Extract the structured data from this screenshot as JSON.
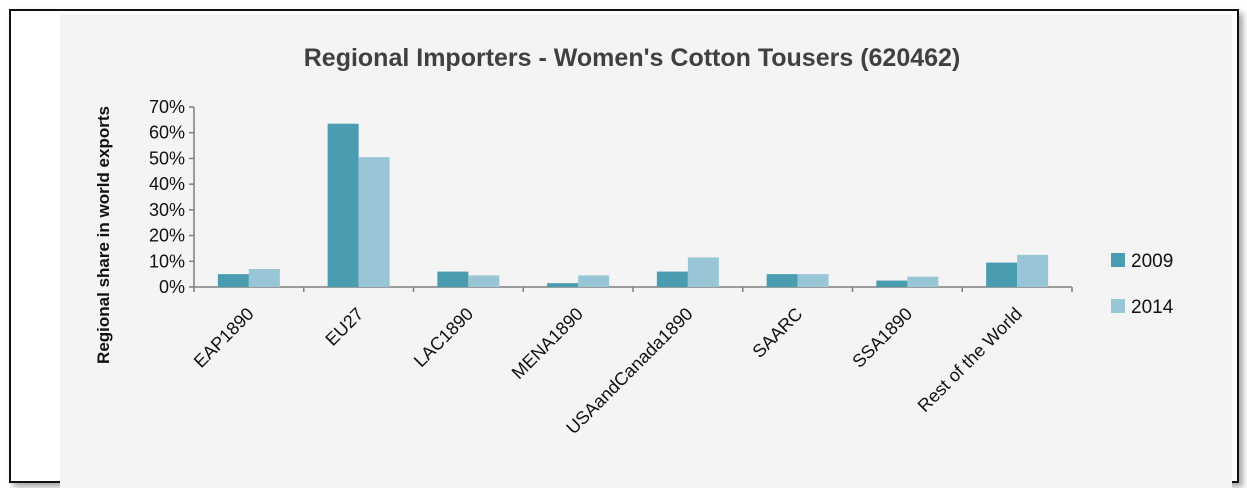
{
  "chart_data": {
    "type": "bar",
    "title": "Regional Importers - Women's Cotton Tousers (620462)",
    "xlabel": "",
    "ylabel": "Regional share in world exports",
    "ylim": [
      0,
      70
    ],
    "yticks": [
      "0%",
      "10%",
      "20%",
      "30%",
      "40%",
      "50%",
      "60%",
      "70%"
    ],
    "categories": [
      "EAP1890",
      "EU27",
      "LAC1890",
      "MENA1890",
      "USAandCanada1890",
      "SAARC",
      "SSA1890",
      "Rest of the World"
    ],
    "series": [
      {
        "name": "2009",
        "color": "#4a9cb1",
        "values": [
          5,
          63.5,
          6,
          1.5,
          6,
          5,
          2.5,
          9.5
        ]
      },
      {
        "name": "2014",
        "color": "#98c6d6",
        "values": [
          7,
          50.5,
          4.5,
          4.5,
          11.5,
          5,
          4,
          12.5
        ]
      }
    ],
    "legend_placement": "right",
    "grid": false
  }
}
